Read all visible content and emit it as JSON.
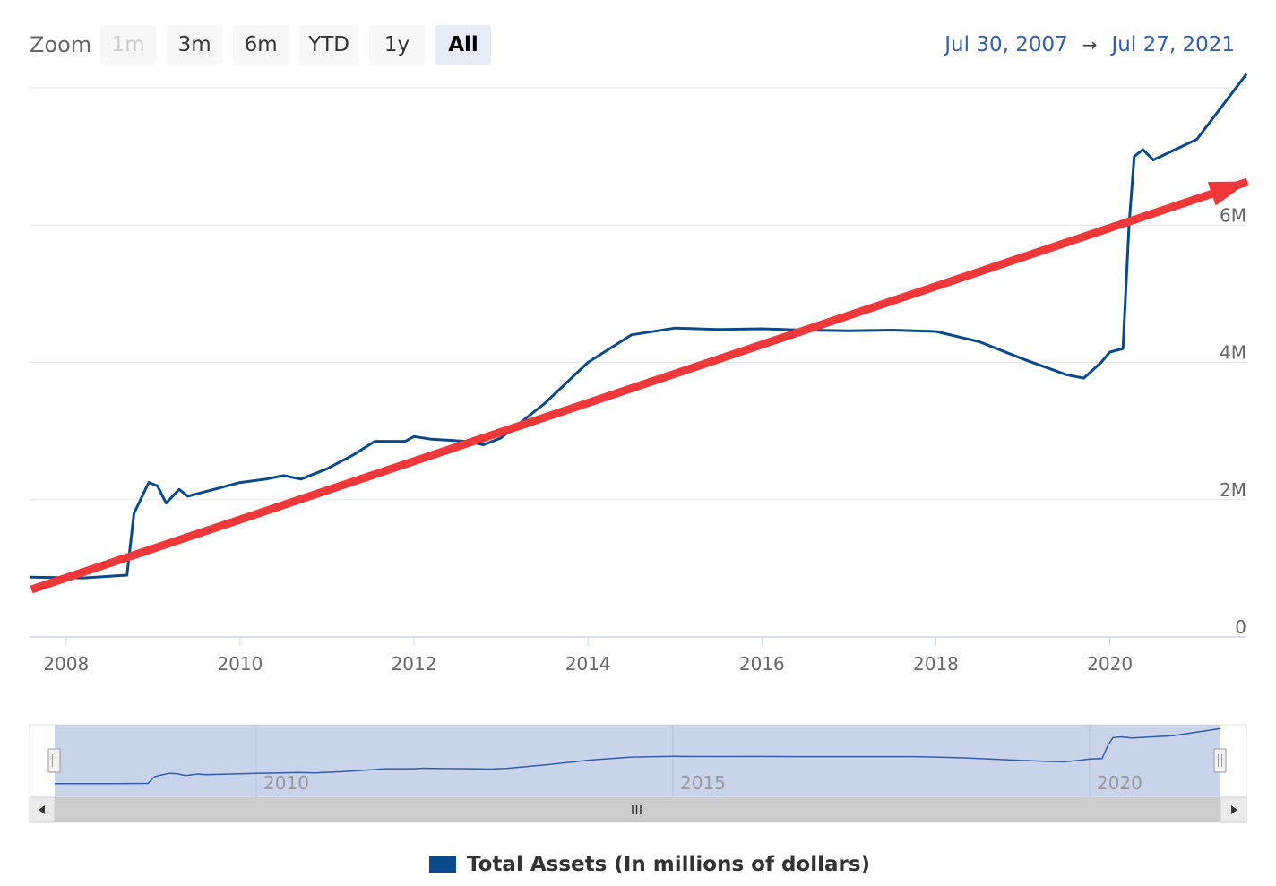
{
  "toolbar": {
    "zoom_label": "Zoom",
    "buttons": [
      {
        "label": "1m",
        "state": "disabled"
      },
      {
        "label": "3m",
        "state": "normal"
      },
      {
        "label": "6m",
        "state": "normal"
      },
      {
        "label": "YTD",
        "state": "normal"
      },
      {
        "label": "1y",
        "state": "normal"
      },
      {
        "label": "All",
        "state": "active"
      }
    ]
  },
  "range": {
    "from": "Jul 30, 2007",
    "arrow": "→",
    "to": "Jul 27, 2021"
  },
  "colors": {
    "series": "#0b4a8a",
    "trend_arrow": "#f0373a",
    "navigator_fill": "#c9d3ea",
    "grid": "#e6e6e6"
  },
  "chart_data": {
    "type": "line",
    "y_ticks": [
      "0",
      "2M",
      "4M",
      "6M"
    ],
    "x_ticks": [
      "2008",
      "2010",
      "2012",
      "2014",
      "2016",
      "2018",
      "2020"
    ],
    "ylim": [
      0,
      8000000
    ],
    "xlim": [
      2007.58,
      2021.57
    ],
    "grid": true,
    "legend_position": "bottom-center",
    "series": [
      {
        "name": "Total Assets (In millions of dollars)",
        "x": [
          2007.58,
          2008.2,
          2008.7,
          2008.78,
          2008.95,
          2009.05,
          2009.15,
          2009.3,
          2009.4,
          2009.55,
          2009.7,
          2009.85,
          2010.0,
          2010.3,
          2010.5,
          2010.7,
          2011.0,
          2011.3,
          2011.55,
          2011.9,
          2012.0,
          2012.2,
          2012.6,
          2012.8,
          2013.0,
          2013.5,
          2014.0,
          2014.5,
          2015.0,
          2015.5,
          2016.0,
          2016.5,
          2017.0,
          2017.5,
          2018.0,
          2018.5,
          2019.0,
          2019.5,
          2019.7,
          2019.9,
          2020.0,
          2020.15,
          2020.22,
          2020.28,
          2020.38,
          2020.5,
          2021.0,
          2021.57
        ],
        "values": [
          870000,
          860000,
          900000,
          1800000,
          2250000,
          2200000,
          1950000,
          2150000,
          2050000,
          2100000,
          2150000,
          2200000,
          2250000,
          2300000,
          2350000,
          2300000,
          2450000,
          2650000,
          2850000,
          2850000,
          2920000,
          2880000,
          2850000,
          2800000,
          2900000,
          3400000,
          4000000,
          4400000,
          4500000,
          4480000,
          4490000,
          4470000,
          4460000,
          4470000,
          4450000,
          4300000,
          4050000,
          3820000,
          3770000,
          4000000,
          4150000,
          4200000,
          6000000,
          7000000,
          7100000,
          6950000,
          7250000,
          8200000
        ]
      }
    ],
    "navigator": {
      "x_ticks": [
        "2010",
        "2015",
        "2020"
      ]
    }
  }
}
